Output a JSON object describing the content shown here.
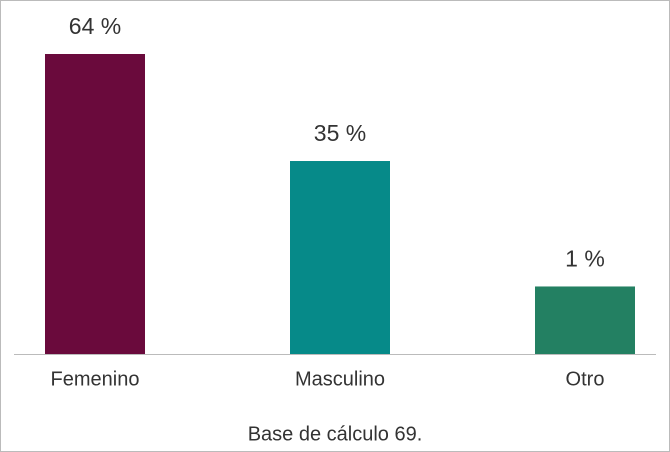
{
  "chart_data": {
    "type": "bar",
    "categories": [
      "Femenino",
      "Masculino",
      "Otro"
    ],
    "values": [
      64,
      35,
      1
    ],
    "value_labels": [
      "64 %",
      "35 %",
      "1 %"
    ],
    "colors": [
      "#6a0a3c",
      "#068a89",
      "#238062"
    ],
    "ylim": [
      -17.3,
      64
    ],
    "note": "Base de cálculo 69."
  }
}
